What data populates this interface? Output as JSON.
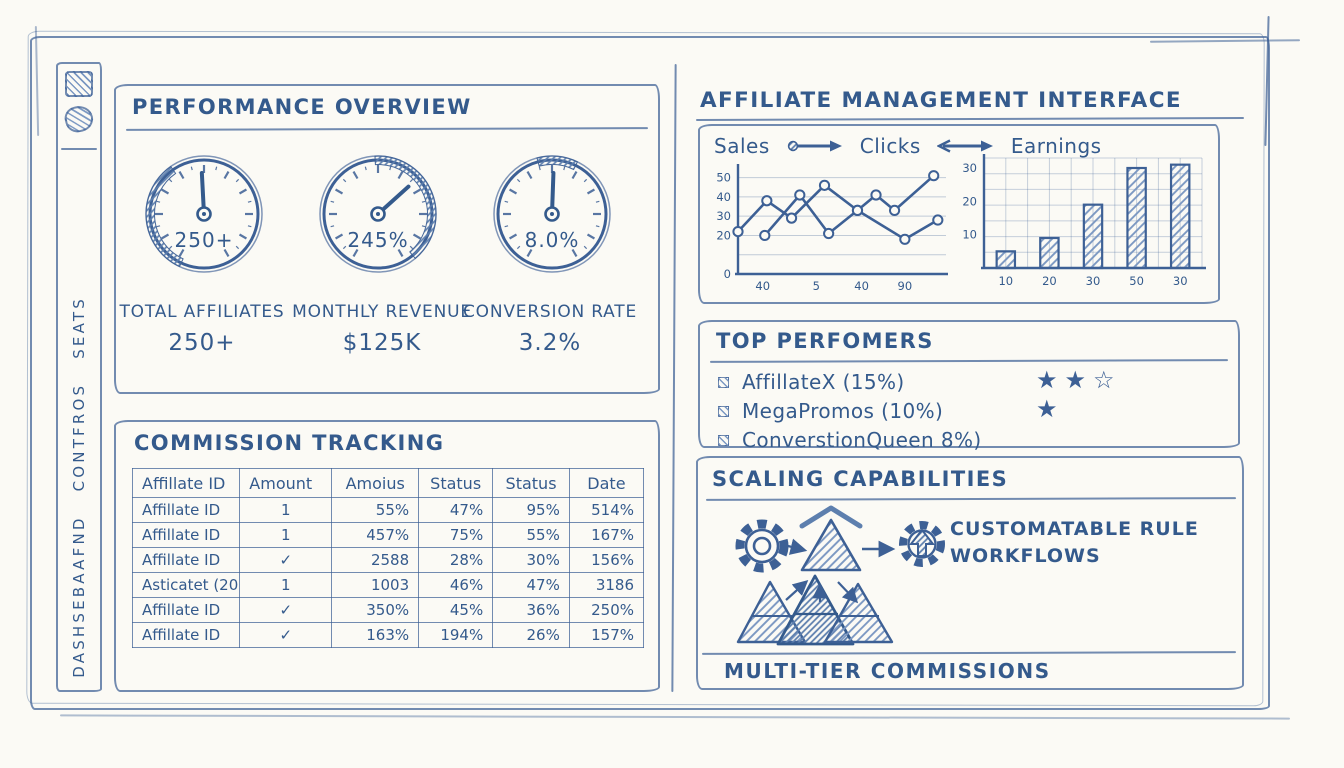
{
  "theme": {
    "ink": "#3d6095",
    "ink_strong": "#345a8c",
    "hatch": "#7b98c2",
    "paper": "#fbfaf5"
  },
  "sidebar": {
    "label": "DASHSEBAAFND CONTFROS SEATS",
    "icons": [
      "grid-icon",
      "bookmark-icon"
    ]
  },
  "performance": {
    "title": "PERFORMANCE OVERVIEW",
    "gauges": [
      {
        "value": "250+",
        "needle_deg": -3,
        "arc_start": 205,
        "arc_end": 325
      },
      {
        "value": "245%",
        "needle_deg": 48,
        "arc_start": -3,
        "arc_end": 140
      },
      {
        "value": "8.0%",
        "needle_deg": 2,
        "arc_start": -15,
        "arc_end": 26
      }
    ],
    "stats": [
      {
        "label": "TOTAL AFFILIATES",
        "value": "250+"
      },
      {
        "label": "MONTHLY REVENUE",
        "value": "$125K"
      },
      {
        "label": "CONVERSION RATE",
        "value": "3.2%"
      }
    ]
  },
  "commission": {
    "title": "COMMISSION TRACKING",
    "table": {
      "headers": [
        "Affillate ID",
        "Amount",
        "Amoius",
        "Status",
        "Status",
        "Date"
      ],
      "rows": [
        [
          "Affillate ID",
          "1",
          "55%",
          "47%",
          "95%",
          "514%"
        ],
        [
          "Affillate ID",
          "1",
          "457%",
          "75%",
          "55%",
          "167%"
        ],
        [
          "Affillate ID",
          "✓",
          "2588",
          "28%",
          "30%",
          "156%"
        ],
        [
          "Asticatet (20",
          "1",
          "1003",
          "46%",
          "47%",
          "3186"
        ],
        [
          "Affillate ID",
          "✓",
          "350%",
          "45%",
          "36%",
          "250%"
        ],
        [
          "Affillate ID",
          "✓",
          "163%",
          "194%",
          "26%",
          "157%"
        ]
      ]
    }
  },
  "management": {
    "title": "AFFILIATE MANAGEMENT INTERFACE",
    "legend": [
      "Sales",
      "Clicks",
      "Earnings"
    ]
  },
  "chart_data": [
    {
      "type": "line",
      "x_tick_labels": [
        "40",
        "5",
        "40",
        "90"
      ],
      "x_tick_positions": [
        12,
        38,
        60,
        81
      ],
      "y_tick_labels": [
        50,
        40,
        30,
        20,
        0
      ],
      "grid_values": [
        10,
        20,
        30,
        40,
        50
      ],
      "ylim": [
        0,
        55
      ],
      "grid": true,
      "legend_position": "top",
      "series": [
        {
          "name": "Sales",
          "x": [
            0,
            14,
            26,
            42,
            58,
            67,
            76,
            95
          ],
          "y": [
            22,
            38,
            29,
            46,
            33,
            41,
            33,
            51
          ]
        },
        {
          "name": "Clicks",
          "x": [
            13,
            30,
            44,
            58,
            81,
            97
          ],
          "y": [
            20,
            41,
            21,
            33,
            18,
            28
          ]
        }
      ]
    },
    {
      "type": "bar",
      "categories": [
        "10",
        "20",
        "30",
        "50",
        "30"
      ],
      "values": [
        5,
        9,
        19,
        30,
        31
      ],
      "y_ticks": [
        10,
        20,
        30
      ],
      "ylim": [
        0,
        33
      ],
      "grid": true
    }
  ],
  "top_performers": {
    "title": "TOP PERFOMERS",
    "items": [
      {
        "name": "AffillateX (15%)",
        "stars_filled": 2,
        "stars_outline": 1
      },
      {
        "name": "MegaPromos (10%)",
        "stars_filled": 1,
        "stars_outline": 0
      },
      {
        "name": "ConverstionQueen 8%)",
        "stars_filled": 0,
        "stars_outline": 0
      }
    ]
  },
  "scaling": {
    "title": "SCALING CAPABILITIES",
    "caption_line1": "CUSTOMATABLE RULE",
    "caption_line2": "WORKFLOWS",
    "footer": "MULTI-TIER COMMISSIONS"
  }
}
